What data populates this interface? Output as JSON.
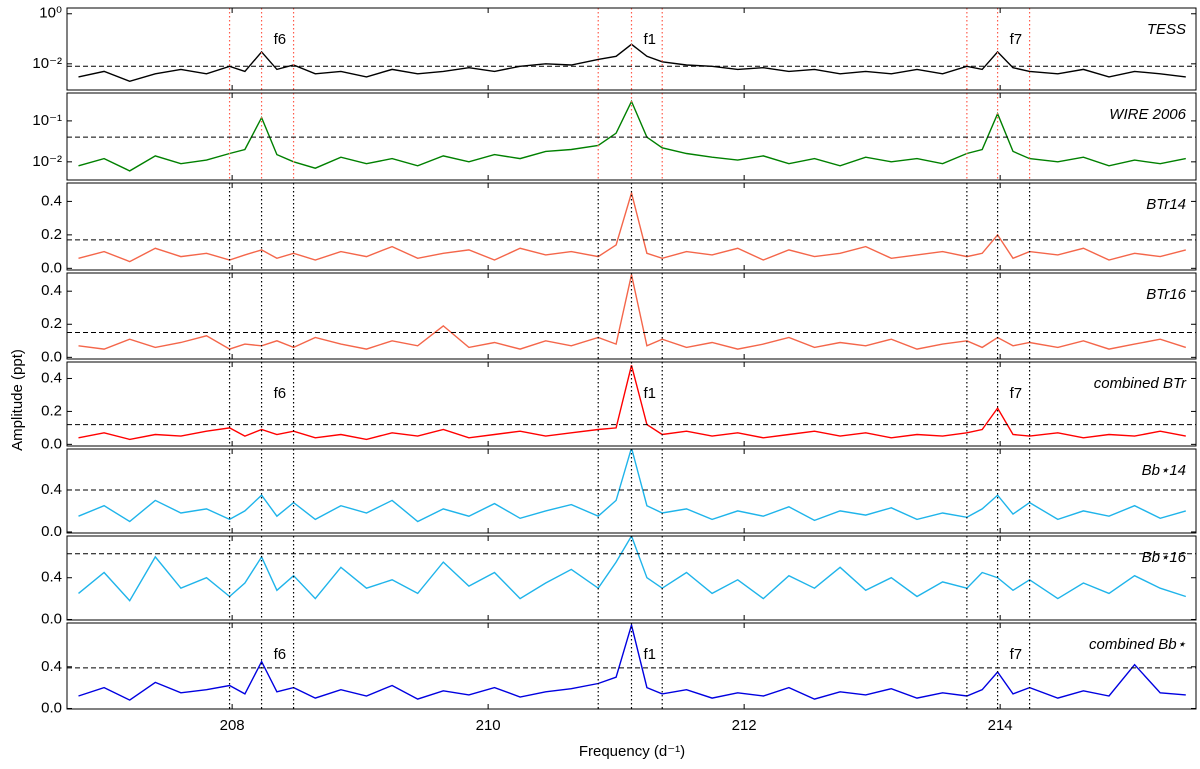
{
  "xlim": [
    206.71,
    215.53
  ],
  "xticks": [
    208,
    210,
    212,
    214
  ],
  "xlabel": "Frequency (d⁻¹)",
  "ylabel": "Amplitude (ppt)",
  "markers": [
    207.98,
    208.23,
    208.48,
    210.86,
    211.12,
    211.36,
    213.74,
    213.98,
    214.23
  ],
  "chart_data": [
    {
      "type": "line",
      "title": "TESS",
      "color": "#000000",
      "log": true,
      "ylim": [
        0.0009,
        1.7
      ],
      "yticks": [
        {
          "value": 1,
          "label": "10⁰"
        },
        {
          "value": 0.01,
          "label": "10⁻²"
        }
      ],
      "threshold": 0.008,
      "marker_color": "#ff5a4a",
      "annotations": [
        "f6",
        "f1",
        "f7"
      ],
      "x": [
        206.8,
        207.0,
        207.2,
        207.4,
        207.6,
        207.8,
        207.98,
        208.1,
        208.23,
        208.35,
        208.48,
        208.65,
        208.85,
        209.05,
        209.25,
        209.45,
        209.65,
        209.85,
        210.05,
        210.25,
        210.45,
        210.65,
        210.86,
        211.0,
        211.12,
        211.24,
        211.36,
        211.55,
        211.75,
        211.95,
        212.15,
        212.35,
        212.55,
        212.75,
        212.95,
        213.15,
        213.35,
        213.55,
        213.74,
        213.86,
        213.98,
        214.1,
        214.23,
        214.45,
        214.65,
        214.85,
        215.05,
        215.25,
        215.45
      ],
      "values": [
        0.003,
        0.005,
        0.002,
        0.004,
        0.006,
        0.004,
        0.008,
        0.005,
        0.03,
        0.006,
        0.009,
        0.004,
        0.005,
        0.003,
        0.006,
        0.004,
        0.005,
        0.007,
        0.005,
        0.008,
        0.01,
        0.009,
        0.015,
        0.02,
        0.06,
        0.02,
        0.012,
        0.009,
        0.008,
        0.006,
        0.007,
        0.005,
        0.006,
        0.004,
        0.005,
        0.004,
        0.006,
        0.004,
        0.008,
        0.006,
        0.03,
        0.007,
        0.005,
        0.004,
        0.006,
        0.003,
        0.005,
        0.004,
        0.003
      ]
    },
    {
      "type": "line",
      "title": "WIRE 2006",
      "color": "#008000",
      "log": true,
      "ylim": [
        0.0036,
        0.48
      ],
      "yticks": [
        {
          "value": 0.1,
          "label": "10⁻¹"
        },
        {
          "value": 0.01,
          "label": "10⁻²"
        }
      ],
      "threshold": 0.04,
      "marker_color": "#ff5a4a",
      "x": [
        206.8,
        207.0,
        207.2,
        207.4,
        207.6,
        207.8,
        207.98,
        208.1,
        208.23,
        208.35,
        208.48,
        208.65,
        208.85,
        209.05,
        209.25,
        209.45,
        209.65,
        209.85,
        210.05,
        210.25,
        210.45,
        210.65,
        210.86,
        211.0,
        211.12,
        211.24,
        211.36,
        211.55,
        211.75,
        211.95,
        212.15,
        212.35,
        212.55,
        212.75,
        212.95,
        213.15,
        213.35,
        213.55,
        213.74,
        213.86,
        213.98,
        214.1,
        214.23,
        214.45,
        214.65,
        214.85,
        215.05,
        215.25,
        215.45
      ],
      "values": [
        0.008,
        0.012,
        0.006,
        0.014,
        0.009,
        0.011,
        0.016,
        0.02,
        0.12,
        0.015,
        0.01,
        0.007,
        0.013,
        0.009,
        0.012,
        0.008,
        0.014,
        0.01,
        0.015,
        0.012,
        0.018,
        0.02,
        0.025,
        0.05,
        0.3,
        0.04,
        0.022,
        0.016,
        0.013,
        0.011,
        0.014,
        0.009,
        0.012,
        0.008,
        0.013,
        0.01,
        0.012,
        0.009,
        0.016,
        0.02,
        0.15,
        0.018,
        0.012,
        0.01,
        0.013,
        0.008,
        0.011,
        0.009,
        0.012
      ]
    },
    {
      "type": "line",
      "title": "BTr14",
      "color": "#f4664a",
      "log": false,
      "ylim": [
        -0.01,
        0.51
      ],
      "yticks": [
        {
          "value": 0,
          "label": "0.0"
        },
        0.2,
        0.4
      ],
      "threshold": 0.17,
      "marker_color": "#000000",
      "x": [
        206.8,
        207.0,
        207.2,
        207.4,
        207.6,
        207.8,
        207.98,
        208.1,
        208.23,
        208.35,
        208.48,
        208.65,
        208.85,
        209.05,
        209.25,
        209.45,
        209.65,
        209.85,
        210.05,
        210.25,
        210.45,
        210.65,
        210.86,
        211.0,
        211.12,
        211.24,
        211.36,
        211.55,
        211.75,
        211.95,
        212.15,
        212.35,
        212.55,
        212.75,
        212.95,
        213.15,
        213.35,
        213.55,
        213.74,
        213.86,
        213.98,
        214.1,
        214.23,
        214.45,
        214.65,
        214.85,
        215.05,
        215.25,
        215.45
      ],
      "values": [
        0.06,
        0.1,
        0.04,
        0.12,
        0.07,
        0.09,
        0.05,
        0.08,
        0.11,
        0.06,
        0.09,
        0.05,
        0.1,
        0.07,
        0.13,
        0.06,
        0.09,
        0.11,
        0.05,
        0.12,
        0.08,
        0.1,
        0.07,
        0.14,
        0.45,
        0.09,
        0.06,
        0.1,
        0.08,
        0.12,
        0.05,
        0.11,
        0.07,
        0.09,
        0.13,
        0.06,
        0.08,
        0.1,
        0.07,
        0.09,
        0.2,
        0.06,
        0.1,
        0.08,
        0.12,
        0.05,
        0.09,
        0.07,
        0.11
      ]
    },
    {
      "type": "line",
      "title": "BTr16",
      "color": "#f4664a",
      "log": false,
      "ylim": [
        -0.01,
        0.51
      ],
      "yticks": [
        {
          "value": 0,
          "label": "0.0"
        },
        0.2,
        0.4
      ],
      "threshold": 0.15,
      "marker_color": "#000000",
      "x": [
        206.8,
        207.0,
        207.2,
        207.4,
        207.6,
        207.8,
        207.98,
        208.1,
        208.23,
        208.35,
        208.48,
        208.65,
        208.85,
        209.05,
        209.25,
        209.45,
        209.65,
        209.85,
        210.05,
        210.25,
        210.45,
        210.65,
        210.86,
        211.0,
        211.12,
        211.24,
        211.36,
        211.55,
        211.75,
        211.95,
        212.15,
        212.35,
        212.55,
        212.75,
        212.95,
        213.15,
        213.35,
        213.55,
        213.74,
        213.86,
        213.98,
        214.1,
        214.23,
        214.45,
        214.65,
        214.85,
        215.05,
        215.25,
        215.45
      ],
      "values": [
        0.07,
        0.05,
        0.11,
        0.06,
        0.09,
        0.13,
        0.05,
        0.08,
        0.07,
        0.1,
        0.06,
        0.12,
        0.08,
        0.05,
        0.1,
        0.07,
        0.19,
        0.06,
        0.09,
        0.05,
        0.1,
        0.07,
        0.12,
        0.08,
        0.5,
        0.07,
        0.11,
        0.06,
        0.09,
        0.05,
        0.08,
        0.12,
        0.06,
        0.09,
        0.07,
        0.11,
        0.05,
        0.08,
        0.1,
        0.06,
        0.12,
        0.07,
        0.09,
        0.06,
        0.1,
        0.05,
        0.08,
        0.11,
        0.06
      ]
    },
    {
      "type": "line",
      "title": "combined BTr",
      "color": "#ff0000",
      "log": false,
      "ylim": [
        -0.01,
        0.5
      ],
      "yticks": [
        {
          "value": 0,
          "label": "0.0"
        },
        0.2,
        0.4
      ],
      "threshold": 0.12,
      "marker_color": "#000000",
      "annotations": [
        "f6",
        "f1",
        "f7"
      ],
      "x": [
        206.8,
        207.0,
        207.2,
        207.4,
        207.6,
        207.8,
        207.98,
        208.1,
        208.23,
        208.35,
        208.48,
        208.65,
        208.85,
        209.05,
        209.25,
        209.45,
        209.65,
        209.85,
        210.05,
        210.25,
        210.45,
        210.65,
        210.86,
        211.0,
        211.12,
        211.24,
        211.36,
        211.55,
        211.75,
        211.95,
        212.15,
        212.35,
        212.55,
        212.75,
        212.95,
        213.15,
        213.35,
        213.55,
        213.74,
        213.86,
        213.98,
        214.1,
        214.23,
        214.45,
        214.65,
        214.85,
        215.05,
        215.25,
        215.45
      ],
      "values": [
        0.04,
        0.07,
        0.03,
        0.06,
        0.05,
        0.08,
        0.1,
        0.05,
        0.09,
        0.06,
        0.08,
        0.04,
        0.06,
        0.03,
        0.07,
        0.05,
        0.09,
        0.04,
        0.06,
        0.08,
        0.05,
        0.07,
        0.09,
        0.1,
        0.48,
        0.12,
        0.06,
        0.08,
        0.05,
        0.07,
        0.04,
        0.06,
        0.08,
        0.05,
        0.07,
        0.04,
        0.06,
        0.05,
        0.07,
        0.09,
        0.22,
        0.06,
        0.05,
        0.07,
        0.04,
        0.06,
        0.05,
        0.08,
        0.05
      ]
    },
    {
      "type": "line",
      "title": "Bb⋆14",
      "color": "#1fb4ea",
      "log": false,
      "ylim": [
        -0.01,
        0.79
      ],
      "yticks": [
        {
          "value": 0,
          "label": "0.0"
        },
        0.4
      ],
      "threshold": 0.4,
      "marker_color": "#000000",
      "x": [
        206.8,
        207.0,
        207.2,
        207.4,
        207.6,
        207.8,
        207.98,
        208.1,
        208.23,
        208.35,
        208.48,
        208.65,
        208.85,
        209.05,
        209.25,
        209.45,
        209.65,
        209.85,
        210.05,
        210.25,
        210.45,
        210.65,
        210.86,
        211.0,
        211.12,
        211.24,
        211.36,
        211.55,
        211.75,
        211.95,
        212.15,
        212.35,
        212.55,
        212.75,
        212.95,
        213.15,
        213.35,
        213.55,
        213.74,
        213.86,
        213.98,
        214.1,
        214.23,
        214.45,
        214.65,
        214.85,
        215.05,
        215.25,
        215.45
      ],
      "values": [
        0.15,
        0.25,
        0.1,
        0.3,
        0.18,
        0.22,
        0.12,
        0.2,
        0.35,
        0.15,
        0.28,
        0.12,
        0.25,
        0.18,
        0.3,
        0.1,
        0.22,
        0.15,
        0.27,
        0.13,
        0.2,
        0.26,
        0.15,
        0.3,
        0.8,
        0.25,
        0.18,
        0.22,
        0.12,
        0.2,
        0.15,
        0.24,
        0.11,
        0.2,
        0.16,
        0.23,
        0.12,
        0.18,
        0.14,
        0.22,
        0.35,
        0.17,
        0.28,
        0.12,
        0.2,
        0.15,
        0.25,
        0.13,
        0.2
      ]
    },
    {
      "type": "line",
      "title": "Bb⋆16",
      "color": "#1fb4ea",
      "log": false,
      "ylim": [
        -0.005,
        0.8
      ],
      "yticks": [
        {
          "value": 0,
          "label": "0.0"
        },
        0.4
      ],
      "threshold": 0.63,
      "marker_color": "#000000",
      "x": [
        206.8,
        207.0,
        207.2,
        207.4,
        207.6,
        207.8,
        207.98,
        208.1,
        208.23,
        208.35,
        208.48,
        208.65,
        208.85,
        209.05,
        209.25,
        209.45,
        209.65,
        209.85,
        210.05,
        210.25,
        210.45,
        210.65,
        210.86,
        211.0,
        211.12,
        211.24,
        211.36,
        211.55,
        211.75,
        211.95,
        212.15,
        212.35,
        212.55,
        212.75,
        212.95,
        213.15,
        213.35,
        213.55,
        213.74,
        213.86,
        213.98,
        214.1,
        214.23,
        214.45,
        214.65,
        214.85,
        215.05,
        215.25,
        215.45
      ],
      "values": [
        0.25,
        0.45,
        0.18,
        0.6,
        0.3,
        0.4,
        0.22,
        0.35,
        0.6,
        0.28,
        0.42,
        0.2,
        0.5,
        0.3,
        0.38,
        0.25,
        0.55,
        0.32,
        0.45,
        0.2,
        0.35,
        0.48,
        0.3,
        0.55,
        0.8,
        0.4,
        0.3,
        0.45,
        0.25,
        0.38,
        0.2,
        0.42,
        0.3,
        0.5,
        0.28,
        0.4,
        0.22,
        0.36,
        0.3,
        0.45,
        0.4,
        0.28,
        0.38,
        0.2,
        0.35,
        0.25,
        0.42,
        0.3,
        0.22
      ]
    },
    {
      "type": "line",
      "title": "combined Bb⋆",
      "color": "#0000e0",
      "log": false,
      "ylim": [
        -0.005,
        0.82
      ],
      "yticks": [
        {
          "value": 0,
          "label": "0.0"
        },
        0.4
      ],
      "threshold": 0.39,
      "marker_color": "#000000",
      "annotations": [
        "f6",
        "f1",
        "f7"
      ],
      "x": [
        206.8,
        207.0,
        207.2,
        207.4,
        207.6,
        207.8,
        207.98,
        208.1,
        208.23,
        208.35,
        208.48,
        208.65,
        208.85,
        209.05,
        209.25,
        209.45,
        209.65,
        209.85,
        210.05,
        210.25,
        210.45,
        210.65,
        210.86,
        211.0,
        211.12,
        211.24,
        211.36,
        211.55,
        211.75,
        211.95,
        212.15,
        212.35,
        212.55,
        212.75,
        212.95,
        213.15,
        213.35,
        213.55,
        213.74,
        213.86,
        213.98,
        214.1,
        214.23,
        214.45,
        214.65,
        214.85,
        215.05,
        215.25,
        215.45
      ],
      "values": [
        0.12,
        0.2,
        0.08,
        0.25,
        0.15,
        0.18,
        0.22,
        0.14,
        0.45,
        0.16,
        0.2,
        0.1,
        0.18,
        0.12,
        0.22,
        0.09,
        0.17,
        0.13,
        0.2,
        0.11,
        0.16,
        0.19,
        0.24,
        0.3,
        0.8,
        0.2,
        0.14,
        0.18,
        0.1,
        0.15,
        0.12,
        0.2,
        0.09,
        0.16,
        0.13,
        0.19,
        0.1,
        0.15,
        0.12,
        0.18,
        0.35,
        0.14,
        0.2,
        0.1,
        0.17,
        0.12,
        0.42,
        0.15,
        0.13
      ]
    }
  ]
}
